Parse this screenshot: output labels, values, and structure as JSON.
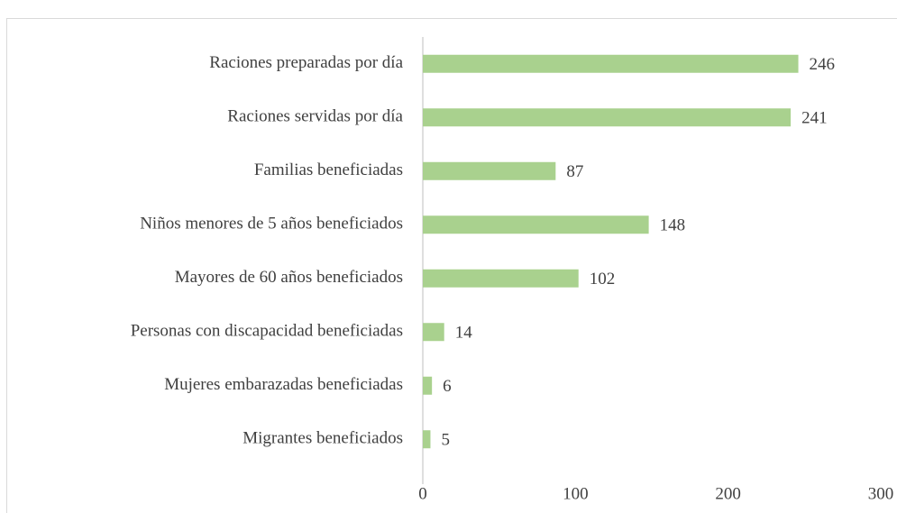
{
  "chart_data": {
    "type": "bar",
    "orientation": "horizontal",
    "categories": [
      "Raciones preparadas por día",
      "Raciones servidas por día",
      "Familias beneficiadas",
      "Niños menores de 5 años beneficiados",
      "Mayores de 60 años beneficiados",
      "Personas con discapacidad beneficiadas",
      "Mujeres embarazadas beneficiadas",
      "Migrantes beneficiados"
    ],
    "values": [
      246,
      241,
      87,
      148,
      102,
      14,
      6,
      5
    ],
    "color": "#a9d18e",
    "xlim": [
      0,
      300
    ],
    "xticks": [
      0,
      100,
      200,
      300
    ],
    "grid": false
  }
}
